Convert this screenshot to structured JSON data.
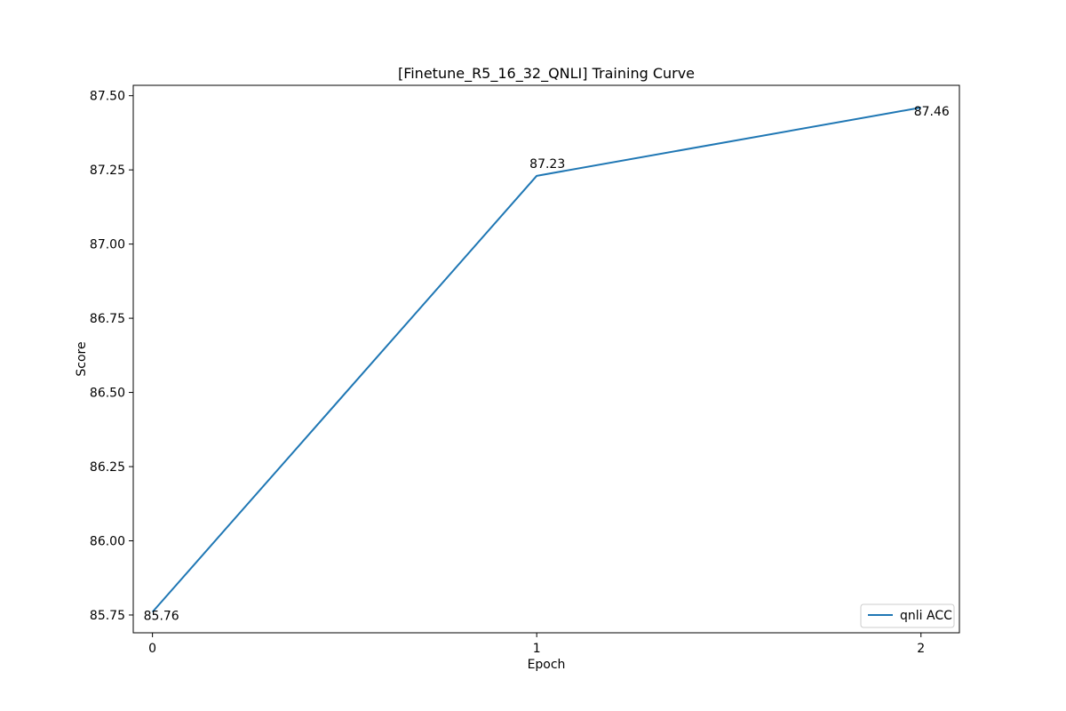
{
  "chart_data": {
    "type": "line",
    "title": "[Finetune_R5_16_32_QNLI] Training Curve",
    "xlabel": "Epoch",
    "ylabel": "Score",
    "x": [
      0,
      1,
      2
    ],
    "x_ticks": [
      "0",
      "1",
      "2"
    ],
    "xlim": [
      -0.05,
      2.1
    ],
    "ylim": [
      85.69,
      87.535
    ],
    "y_ticks": [
      "85.75",
      "86.00",
      "86.25",
      "86.50",
      "86.75",
      "87.00",
      "87.25",
      "87.50"
    ],
    "series": [
      {
        "name": "qnli ACC",
        "color": "#1f77b4",
        "values": [
          85.76,
          87.23,
          87.46
        ],
        "data_labels": [
          "85.76",
          "87.23",
          "87.46"
        ]
      }
    ],
    "grid": false,
    "legend_position": "lower right"
  }
}
